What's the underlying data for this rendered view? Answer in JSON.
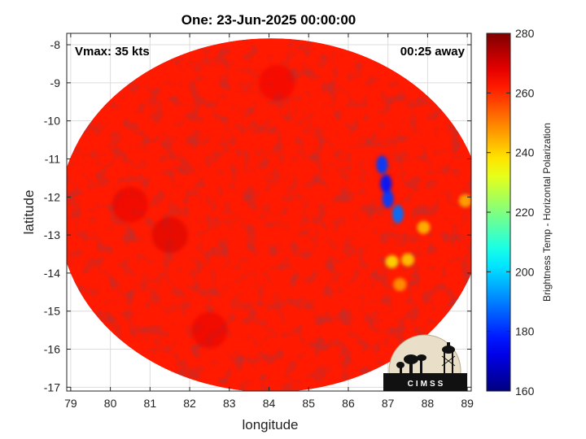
{
  "chart_data": {
    "type": "heatmap",
    "title": "One: 23-Jun-2025 00:00:00",
    "xlabel": "longitude",
    "ylabel": "latitude",
    "xlim": [
      78.9,
      89.1
    ],
    "ylim": [
      -17.1,
      -7.7
    ],
    "xticks": [
      "79",
      "80",
      "81",
      "82",
      "83",
      "84",
      "85",
      "86",
      "87",
      "88",
      "89"
    ],
    "yticks": [
      "-8",
      "-9",
      "-10",
      "-11",
      "-12",
      "-13",
      "-14",
      "-15",
      "-16",
      "-17"
    ],
    "grid": true,
    "annotations": {
      "left": "Vmax: 35 kts",
      "right": "00:25 away"
    },
    "colorbar": {
      "label": "Brightness Temp - Horizontal Polarization",
      "range": [
        160,
        280
      ],
      "ticks": [
        "160",
        "180",
        "200",
        "220",
        "240",
        "260",
        "280"
      ],
      "colormap": "jet"
    },
    "swath": {
      "center": [
        84.05,
        -12.48
      ],
      "radius_lon": 5.35,
      "radius_lat": 4.65,
      "background_value": 262
    },
    "features": [
      {
        "name": "cold core",
        "lon": 86.85,
        "lat": -11.15,
        "value": 182
      },
      {
        "name": "cold core",
        "lon": 86.95,
        "lat": -11.65,
        "value": 178
      },
      {
        "name": "cold core",
        "lon": 87.0,
        "lat": -12.05,
        "value": 182
      },
      {
        "name": "cold core",
        "lon": 87.25,
        "lat": -12.45,
        "value": 188
      },
      {
        "name": "cold patch",
        "lon": 87.1,
        "lat": -13.7,
        "value": 240
      },
      {
        "name": "cold patch",
        "lon": 87.5,
        "lat": -13.65,
        "value": 242
      },
      {
        "name": "cold patch",
        "lon": 87.9,
        "lat": -12.8,
        "value": 244
      },
      {
        "name": "cold patch",
        "lon": 88.95,
        "lat": -12.1,
        "value": 246
      },
      {
        "name": "cold patch",
        "lon": 87.3,
        "lat": -14.3,
        "value": 248
      },
      {
        "name": "warm patch",
        "lon": 81.5,
        "lat": -13.0,
        "value": 270
      },
      {
        "name": "warm patch",
        "lon": 82.5,
        "lat": -15.5,
        "value": 268
      },
      {
        "name": "warm patch",
        "lon": 80.5,
        "lat": -12.2,
        "value": 268
      },
      {
        "name": "warm patch",
        "lon": 84.2,
        "lat": -9.0,
        "value": 267
      }
    ],
    "logo": "CIMSS"
  }
}
